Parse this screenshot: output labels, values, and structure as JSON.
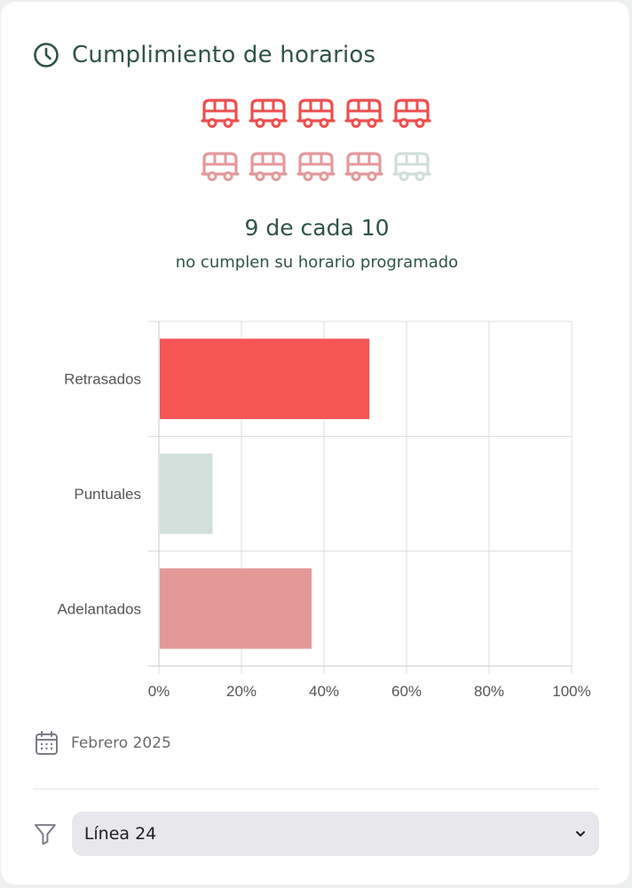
{
  "header": {
    "title": "Cumplimiento de horarios",
    "icon": "clock-icon"
  },
  "pictogram": {
    "total": 10,
    "rows": [
      [
        "#ee4f4f",
        "#ee4f4f",
        "#ee4f4f",
        "#ee4f4f",
        "#ee4f4f"
      ],
      [
        "#e4999b",
        "#e4999b",
        "#e4999b",
        "#e4999b",
        "#cfe0da"
      ]
    ]
  },
  "stat": {
    "headline": "9 de cada 10",
    "subline": "no cumplen su horario programado"
  },
  "chart_data": {
    "type": "bar",
    "orientation": "horizontal",
    "categories": [
      "Retrasados",
      "Puntuales",
      "Adelantados"
    ],
    "values": [
      51,
      13,
      37
    ],
    "colors": [
      "#f55656",
      "#d2e0dc",
      "#e39898"
    ],
    "xlim": [
      0,
      100
    ],
    "xticks": [
      "0%",
      "20%",
      "40%",
      "60%",
      "80%",
      "100%"
    ],
    "grid": true
  },
  "footer": {
    "date": "Febrero 2025",
    "date_icon": "calendar-icon"
  },
  "filter": {
    "icon": "filter-icon",
    "selected": "Línea 24",
    "chevron": "chevron-down-icon"
  }
}
